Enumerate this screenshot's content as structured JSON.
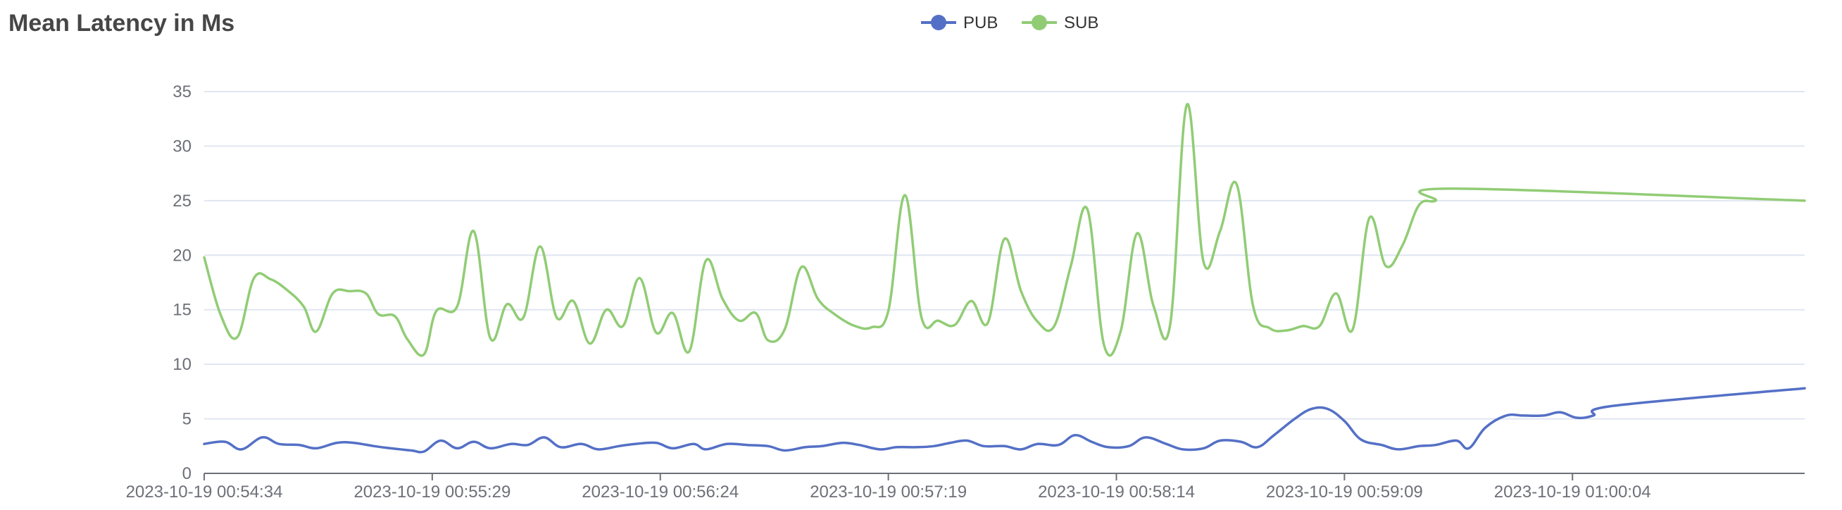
{
  "chart_data": {
    "type": "line",
    "title": "Mean Latency in Ms",
    "xlabel": "",
    "ylabel": "",
    "ylim": [
      0,
      35
    ],
    "yticks": [
      0,
      5,
      10,
      15,
      20,
      25,
      30,
      35
    ],
    "grid": true,
    "smooth": true,
    "legend_position": "top-center",
    "x_range": [
      "2023-10-19 00:54:34",
      "2023-10-19 01:01:00"
    ],
    "x_tick_labels": [
      "2023-10-19 00:54:34",
      "2023-10-19 00:55:29",
      "2023-10-19 00:56:24",
      "2023-10-19 00:57:19",
      "2023-10-19 00:58:14",
      "2023-10-19 00:59:09",
      "2023-10-19 01:00:04"
    ],
    "series": [
      {
        "name": "PUB",
        "color": "#5470c6",
        "points": [
          [
            "2023-10-19 00:54:34",
            2.7
          ],
          [
            "2023-10-19 00:54:39",
            2.9
          ],
          [
            "2023-10-19 00:54:43",
            2.2
          ],
          [
            "2023-10-19 00:54:48",
            3.3
          ],
          [
            "2023-10-19 00:54:52",
            2.7
          ],
          [
            "2023-10-19 00:54:57",
            2.6
          ],
          [
            "2023-10-19 00:55:01",
            2.3
          ],
          [
            "2023-10-19 00:55:06",
            2.8
          ],
          [
            "2023-10-19 00:55:10",
            2.8
          ],
          [
            "2023-10-19 00:55:15",
            2.5
          ],
          [
            "2023-10-19 00:55:19",
            2.3
          ],
          [
            "2023-10-19 00:55:24",
            2.1
          ],
          [
            "2023-10-19 00:55:27",
            2.0
          ],
          [
            "2023-10-19 00:55:31",
            3.0
          ],
          [
            "2023-10-19 00:55:35",
            2.3
          ],
          [
            "2023-10-19 00:55:39",
            2.9
          ],
          [
            "2023-10-19 00:55:43",
            2.3
          ],
          [
            "2023-10-19 00:55:48",
            2.7
          ],
          [
            "2023-10-19 00:55:52",
            2.6
          ],
          [
            "2023-10-19 00:55:56",
            3.3
          ],
          [
            "2023-10-19 00:56:00",
            2.4
          ],
          [
            "2023-10-19 00:56:05",
            2.7
          ],
          [
            "2023-10-19 00:56:09",
            2.2
          ],
          [
            "2023-10-19 00:56:14",
            2.5
          ],
          [
            "2023-10-19 00:56:18",
            2.7
          ],
          [
            "2023-10-19 00:56:23",
            2.8
          ],
          [
            "2023-10-19 00:56:27",
            2.3
          ],
          [
            "2023-10-19 00:56:32",
            2.7
          ],
          [
            "2023-10-19 00:56:35",
            2.2
          ],
          [
            "2023-10-19 00:56:40",
            2.7
          ],
          [
            "2023-10-19 00:56:45",
            2.6
          ],
          [
            "2023-10-19 00:56:50",
            2.5
          ],
          [
            "2023-10-19 00:56:54",
            2.1
          ],
          [
            "2023-10-19 00:56:59",
            2.4
          ],
          [
            "2023-10-19 00:57:03",
            2.5
          ],
          [
            "2023-10-19 00:57:08",
            2.8
          ],
          [
            "2023-10-19 00:57:12",
            2.6
          ],
          [
            "2023-10-19 00:57:17",
            2.2
          ],
          [
            "2023-10-19 00:57:21",
            2.4
          ],
          [
            "2023-10-19 00:57:26",
            2.4
          ],
          [
            "2023-10-19 00:57:30",
            2.5
          ],
          [
            "2023-10-19 00:57:34",
            2.8
          ],
          [
            "2023-10-19 00:57:38",
            3.0
          ],
          [
            "2023-10-19 00:57:42",
            2.5
          ],
          [
            "2023-10-19 00:57:47",
            2.5
          ],
          [
            "2023-10-19 00:57:51",
            2.2
          ],
          [
            "2023-10-19 00:57:55",
            2.7
          ],
          [
            "2023-10-19 00:58:00",
            2.6
          ],
          [
            "2023-10-19 00:58:04",
            3.5
          ],
          [
            "2023-10-19 00:58:08",
            2.9
          ],
          [
            "2023-10-19 00:58:12",
            2.4
          ],
          [
            "2023-10-19 00:58:17",
            2.5
          ],
          [
            "2023-10-19 00:58:21",
            3.3
          ],
          [
            "2023-10-19 00:58:26",
            2.7
          ],
          [
            "2023-10-19 00:58:30",
            2.2
          ],
          [
            "2023-10-19 00:58:35",
            2.3
          ],
          [
            "2023-10-19 00:58:39",
            3.0
          ],
          [
            "2023-10-19 00:58:44",
            2.9
          ],
          [
            "2023-10-19 00:58:48",
            2.4
          ],
          [
            "2023-10-19 00:58:52",
            3.5
          ],
          [
            "2023-10-19 00:58:57",
            5.0
          ],
          [
            "2023-10-19 00:59:01",
            5.9
          ],
          [
            "2023-10-19 00:59:05",
            5.9
          ],
          [
            "2023-10-19 00:59:09",
            4.8
          ],
          [
            "2023-10-19 00:59:13",
            3.1
          ],
          [
            "2023-10-19 00:59:18",
            2.6
          ],
          [
            "2023-10-19 00:59:22",
            2.2
          ],
          [
            "2023-10-19 00:59:27",
            2.5
          ],
          [
            "2023-10-19 00:59:31",
            2.6
          ],
          [
            "2023-10-19 00:59:36",
            3.0
          ],
          [
            "2023-10-19 00:59:39",
            2.3
          ],
          [
            "2023-10-19 00:59:43",
            4.2
          ],
          [
            "2023-10-19 00:59:48",
            5.3
          ],
          [
            "2023-10-19 00:59:52",
            5.3
          ],
          [
            "2023-10-19 00:59:57",
            5.3
          ],
          [
            "2023-10-19 01:00:01",
            5.6
          ],
          [
            "2023-10-19 01:00:05",
            5.1
          ],
          [
            "2023-10-19 01:00:09",
            5.3
          ],
          [
            "2023-10-19 01:00:14",
            6.2
          ],
          [
            "2023-10-19 01:01:00",
            7.8
          ]
        ]
      },
      {
        "name": "SUB",
        "color": "#91cc75",
        "points": [
          [
            "2023-10-19 00:54:34",
            19.8
          ],
          [
            "2023-10-19 00:54:38",
            14.5
          ],
          [
            "2023-10-19 00:54:42",
            12.5
          ],
          [
            "2023-10-19 00:54:46",
            17.9
          ],
          [
            "2023-10-19 00:54:50",
            17.8
          ],
          [
            "2023-10-19 00:54:54",
            16.8
          ],
          [
            "2023-10-19 00:54:58",
            15.3
          ],
          [
            "2023-10-19 00:55:01",
            13.0
          ],
          [
            "2023-10-19 00:55:05",
            16.5
          ],
          [
            "2023-10-19 00:55:09",
            16.7
          ],
          [
            "2023-10-19 00:55:13",
            16.5
          ],
          [
            "2023-10-19 00:55:16",
            14.6
          ],
          [
            "2023-10-19 00:55:20",
            14.4
          ],
          [
            "2023-10-19 00:55:23",
            12.3
          ],
          [
            "2023-10-19 00:55:27",
            10.9
          ],
          [
            "2023-10-19 00:55:30",
            14.9
          ],
          [
            "2023-10-19 00:55:35",
            15.3
          ],
          [
            "2023-10-19 00:55:39",
            22.2
          ],
          [
            "2023-10-19 00:55:43",
            12.4
          ],
          [
            "2023-10-19 00:55:47",
            15.5
          ],
          [
            "2023-10-19 00:55:51",
            14.3
          ],
          [
            "2023-10-19 00:55:55",
            20.8
          ],
          [
            "2023-10-19 00:55:59",
            14.3
          ],
          [
            "2023-10-19 00:56:03",
            15.8
          ],
          [
            "2023-10-19 00:56:07",
            11.9
          ],
          [
            "2023-10-19 00:56:11",
            15.0
          ],
          [
            "2023-10-19 00:56:15",
            13.5
          ],
          [
            "2023-10-19 00:56:19",
            17.9
          ],
          [
            "2023-10-19 00:56:23",
            12.9
          ],
          [
            "2023-10-19 00:56:27",
            14.7
          ],
          [
            "2023-10-19 00:56:31",
            11.2
          ],
          [
            "2023-10-19 00:56:35",
            19.5
          ],
          [
            "2023-10-19 00:56:39",
            16.0
          ],
          [
            "2023-10-19 00:56:43",
            14.0
          ],
          [
            "2023-10-19 00:56:47",
            14.7
          ],
          [
            "2023-10-19 00:56:50",
            12.2
          ],
          [
            "2023-10-19 00:56:54",
            13.2
          ],
          [
            "2023-10-19 00:56:58",
            18.9
          ],
          [
            "2023-10-19 00:57:02",
            16.0
          ],
          [
            "2023-10-19 00:57:06",
            14.6
          ],
          [
            "2023-10-19 00:57:11",
            13.5
          ],
          [
            "2023-10-19 00:57:15",
            13.4
          ],
          [
            "2023-10-19 00:57:19",
            14.9
          ],
          [
            "2023-10-19 00:57:23",
            25.5
          ],
          [
            "2023-10-19 00:57:27",
            14.3
          ],
          [
            "2023-10-19 00:57:31",
            14.0
          ],
          [
            "2023-10-19 00:57:35",
            13.6
          ],
          [
            "2023-10-19 00:57:39",
            15.8
          ],
          [
            "2023-10-19 00:57:43",
            13.8
          ],
          [
            "2023-10-19 00:57:47",
            21.5
          ],
          [
            "2023-10-19 00:57:51",
            16.7
          ],
          [
            "2023-10-19 00:57:55",
            13.9
          ],
          [
            "2023-10-19 00:57:59",
            13.5
          ],
          [
            "2023-10-19 00:58:03",
            19.0
          ],
          [
            "2023-10-19 00:58:07",
            24.2
          ],
          [
            "2023-10-19 00:58:11",
            11.8
          ],
          [
            "2023-10-19 00:58:15",
            13.0
          ],
          [
            "2023-10-19 00:58:19",
            22.0
          ],
          [
            "2023-10-19 00:58:23",
            15.3
          ],
          [
            "2023-10-19 00:58:27",
            13.7
          ],
          [
            "2023-10-19 00:58:31",
            33.8
          ],
          [
            "2023-10-19 00:58:35",
            19.4
          ],
          [
            "2023-10-19 00:58:39",
            22.2
          ],
          [
            "2023-10-19 00:58:43",
            26.5
          ],
          [
            "2023-10-19 00:58:47",
            15.3
          ],
          [
            "2023-10-19 00:58:51",
            13.3
          ],
          [
            "2023-10-19 00:58:55",
            13.1
          ],
          [
            "2023-10-19 00:58:59",
            13.5
          ],
          [
            "2023-10-19 00:59:03",
            13.5
          ],
          [
            "2023-10-19 00:59:07",
            16.5
          ],
          [
            "2023-10-19 00:59:11",
            13.2
          ],
          [
            "2023-10-19 00:59:15",
            23.4
          ],
          [
            "2023-10-19 00:59:19",
            19.0
          ],
          [
            "2023-10-19 00:59:23",
            20.9
          ],
          [
            "2023-10-19 00:59:27",
            24.6
          ],
          [
            "2023-10-19 00:59:31",
            25.0
          ],
          [
            "2023-10-19 00:59:35",
            26.1
          ],
          [
            "2023-10-19 01:01:00",
            25.0
          ]
        ]
      }
    ]
  }
}
